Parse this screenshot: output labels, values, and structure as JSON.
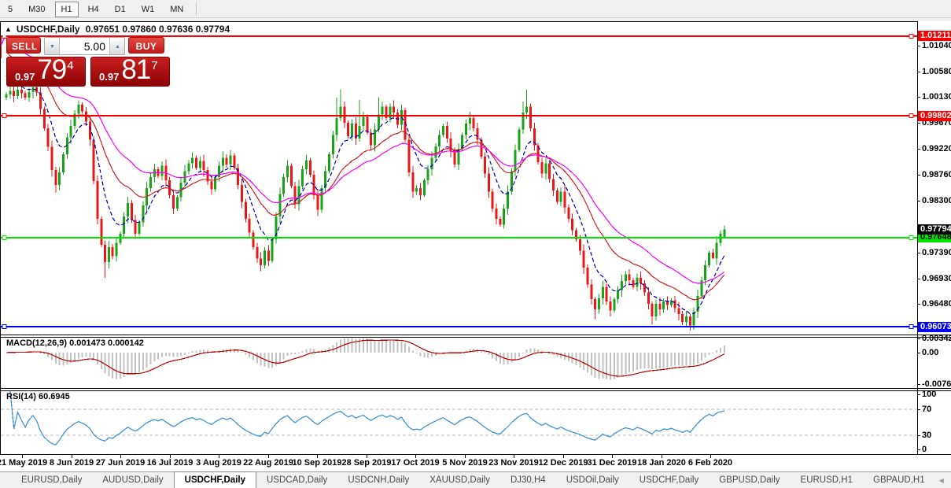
{
  "toolbar": {
    "timeframes": [
      "5",
      "M30",
      "H1",
      "H4",
      "D1",
      "W1",
      "MN"
    ],
    "active": "H1"
  },
  "chart_title": {
    "symbol": "USDCHF,Daily",
    "ohlc": "0.97651 0.97860 0.97636 0.97794"
  },
  "trade_panel": {
    "sell_label": "SELL",
    "buy_label": "BUY",
    "volume": "5.00",
    "spin_down_icon": "▼",
    "spin_up_icon": "▲",
    "sell_price": {
      "small": "0.97",
      "big": "79",
      "sup": "4"
    },
    "buy_price": {
      "small": "0.97",
      "big": "81",
      "sup": "7"
    }
  },
  "price_scale_ticks": [
    {
      "v": 1.0104,
      "label": "1.01040"
    },
    {
      "v": 1.0058,
      "label": "1.00580"
    },
    {
      "v": 1.0013,
      "label": "1.00130"
    },
    {
      "v": 0.9967,
      "label": "0.99670"
    },
    {
      "v": 0.9922,
      "label": "0.99220"
    },
    {
      "v": 0.9876,
      "label": "0.98760"
    },
    {
      "v": 0.983,
      "label": "0.98300"
    },
    {
      "v": 0.9739,
      "label": "0.97390"
    },
    {
      "v": 0.9693,
      "label": "0.96930"
    },
    {
      "v": 0.9648,
      "label": "0.96480"
    }
  ],
  "levels": [
    {
      "v": 1.01211,
      "label": "1.01211",
      "line": "#f40000",
      "bg": "#f40000",
      "fg": "#ffffff"
    },
    {
      "v": 0.99802,
      "label": "0.99802",
      "line": "#f40000",
      "bg": "#f40000",
      "fg": "#ffffff"
    },
    {
      "v": 0.97648,
      "label": "0.97648",
      "line": "#00e400",
      "bg": "#00e400",
      "fg": "#000000"
    },
    {
      "v": 0.96073,
      "label": "0.96073",
      "line": "#0000f0",
      "bg": "#0000f0",
      "fg": "#ffffff"
    }
  ],
  "current_price": {
    "v": 0.97794,
    "label": "0.97794",
    "bg": "#000000",
    "fg": "#ffffff"
  },
  "macd_panel": {
    "label": "MACD(12,26,9) 0.001473 0.000142",
    "scale": [
      {
        "v": 0.003428,
        "label": "0.003428"
      },
      {
        "v": 0,
        "label": "0.00"
      },
      {
        "v": -0.007615,
        "label": "-0.007615"
      }
    ]
  },
  "rsi_panel": {
    "label": "RSI(14) 60.6945",
    "scale": [
      {
        "v": 100,
        "label": "100"
      },
      {
        "v": 70,
        "label": "70"
      },
      {
        "v": 30,
        "label": "30"
      },
      {
        "v": 0,
        "label": "0"
      }
    ],
    "dashed_levels": [
      70,
      30
    ]
  },
  "tabs": {
    "items": [
      "EURUSD,Daily",
      "AUDUSD,Daily",
      "USDCHF,Daily",
      "USDCAD,Daily",
      "USDCNH,Daily",
      "XAUUSD,Daily",
      "DJ30,H4",
      "USDOil,Daily",
      "USDCHF,Daily",
      "GBPUSD,Daily",
      "EURUSD,H1",
      "GBPAUD,H1"
    ],
    "active_index": 2,
    "scroll_left": "◀",
    "scroll_right": "▶"
  },
  "colors": {
    "bull": "#18a318",
    "bear": "#e81818",
    "ma_fast": "#0000b8",
    "ma_mid": "#d02020",
    "ma_slow": "#ff00ff",
    "macd_bar": "#c2c2c2",
    "macd_signal": "#bb0000",
    "rsi_line": "#4393d8",
    "trendline": "#ff00ff"
  },
  "chart_data": {
    "type": "candlestick",
    "symbol": "USDCHF",
    "timeframe": "Daily",
    "x_labels": [
      "21 May 2019",
      "8 Jun 2019",
      "27 Jun 2019",
      "16 Jul 2019",
      "3 Aug 2019",
      "22 Aug 2019",
      "10 Sep 2019",
      "28 Sep 2019",
      "17 Oct 2019",
      "5 Nov 2019",
      "23 Nov 2019",
      "12 Dec 2019",
      "31 Dec 2019",
      "18 Jan 2020",
      "6 Feb 2020"
    ],
    "y_range": [
      0.9594,
      1.0146
    ],
    "open_first": 1.0012,
    "closes": [
      1.0018,
      1.0024,
      1.0015,
      1.0026,
      1.002,
      1.0012,
      1.0022,
      1.003,
      1.0021,
      0.9992,
      0.9958,
      0.9925,
      0.9884,
      0.9858,
      0.988,
      0.9912,
      0.9942,
      0.9962,
      0.9984,
      1.0,
      0.9988,
      0.997,
      0.9938,
      0.9865,
      0.9798,
      0.9752,
      0.9722,
      0.9748,
      0.9732,
      0.9756,
      0.9772,
      0.9802,
      0.9826,
      0.9796,
      0.9772,
      0.9792,
      0.9822,
      0.9852,
      0.9872,
      0.9886,
      0.9874,
      0.9892,
      0.9866,
      0.984,
      0.9816,
      0.9836,
      0.9862,
      0.9882,
      0.9896,
      0.9906,
      0.9888,
      0.99,
      0.9884,
      0.9864,
      0.985,
      0.9872,
      0.9892,
      0.9906,
      0.9894,
      0.991,
      0.9888,
      0.9858,
      0.9828,
      0.9798,
      0.9774,
      0.9748,
      0.9728,
      0.9716,
      0.9742,
      0.9724,
      0.9762,
      0.9802,
      0.9842,
      0.9872,
      0.9892,
      0.9856,
      0.9824,
      0.9856,
      0.9886,
      0.9902,
      0.9876,
      0.984,
      0.9814,
      0.9852,
      0.9882,
      0.9912,
      0.9946,
      0.9976,
      0.9996,
      0.9968,
      0.9944,
      0.9966,
      0.994,
      0.9962,
      0.9978,
      0.995,
      0.9928,
      0.9956,
      0.9982,
      0.9996,
      0.9976,
      0.9996,
      0.9986,
      0.9964,
      0.999,
      0.9938,
      0.988,
      0.9846,
      0.9852,
      0.984,
      0.9866,
      0.9886,
      0.9906,
      0.9926,
      0.9946,
      0.9962,
      0.994,
      0.9918,
      0.9894,
      0.9922,
      0.9946,
      0.9966,
      0.9976,
      0.9958,
      0.9938,
      0.9908,
      0.9878,
      0.9846,
      0.9816,
      0.9798,
      0.9788,
      0.9816,
      0.9846,
      0.9882,
      0.992,
      0.9956,
      0.9986,
      0.9996,
      0.9958,
      0.9928,
      0.9898,
      0.9878,
      0.9896,
      0.9868,
      0.9848,
      0.9828,
      0.9846,
      0.9818,
      0.9798,
      0.9778,
      0.9762,
      0.9742,
      0.9712,
      0.9682,
      0.9656,
      0.9638,
      0.9658,
      0.9678,
      0.9652,
      0.9636,
      0.9656,
      0.9672,
      0.9688,
      0.97,
      0.969,
      0.9678,
      0.9694,
      0.9684,
      0.9668,
      0.9648,
      0.9626,
      0.9648,
      0.9638,
      0.9652,
      0.9646,
      0.9654,
      0.964,
      0.963,
      0.9616,
      0.9626,
      0.961,
      0.9634,
      0.9662,
      0.969,
      0.9716,
      0.9738,
      0.9728,
      0.9756,
      0.9772,
      0.97794
    ],
    "wick_overrides": {
      "13": {
        "low": 0.9845
      },
      "19": {
        "high": 1.0007
      },
      "26": {
        "low": 0.9694
      },
      "67": {
        "low": 0.9706
      },
      "87": {
        "high": 1.0012
      },
      "88": {
        "high": 1.0027
      },
      "93": {
        "high": 1.0008
      },
      "98": {
        "high": 1.0013
      },
      "101": {
        "high": 1.0002
      },
      "136": {
        "high": 1.0005
      },
      "137": {
        "high": 1.0026
      },
      "155": {
        "low": 0.9621
      },
      "159": {
        "low": 0.9626
      },
      "170": {
        "low": 0.9611
      },
      "180": {
        "low": 0.9601
      },
      "186": {
        "low": 0.9737
      }
    },
    "last_candle": {
      "open": 0.97651,
      "high": 0.9786,
      "low": 0.97636,
      "close": 0.97794
    },
    "edge_candle": {
      "o": 1.0124,
      "c": 1.0082
    },
    "indicators": {
      "ma_periods": [
        8,
        21,
        34
      ],
      "macd_params": [
        12,
        26,
        9
      ],
      "rsi_period": 14
    },
    "level_values": [
      1.01211,
      0.99802,
      0.97648,
      0.96073
    ],
    "current_value": 0.97794
  }
}
